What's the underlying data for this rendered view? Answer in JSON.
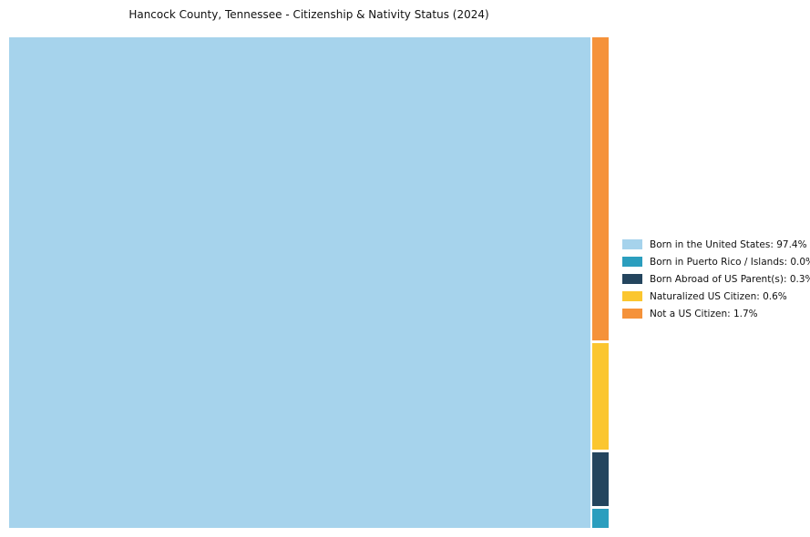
{
  "chart_data": {
    "type": "treemap",
    "title": "Hancock County, Tennessee - Citizenship & Nativity Status (2024)",
    "unit": "%",
    "legend_position": "right",
    "series": [
      {
        "label": "Born in the United States",
        "value_pct": 97.4,
        "color": "#a6d3ec"
      },
      {
        "label": "Born in Puerto Rico / Islands",
        "value_pct": 0.0,
        "color": "#2b9ebe"
      },
      {
        "label": "Born Abroad of US Parent(s)",
        "value_pct": 0.3,
        "color": "#24455e"
      },
      {
        "label": "Naturalized US Citizen",
        "value_pct": 0.6,
        "color": "#fbc62f"
      },
      {
        "label": "Not a US Citizen",
        "value_pct": 1.7,
        "color": "#f5923a"
      }
    ]
  }
}
